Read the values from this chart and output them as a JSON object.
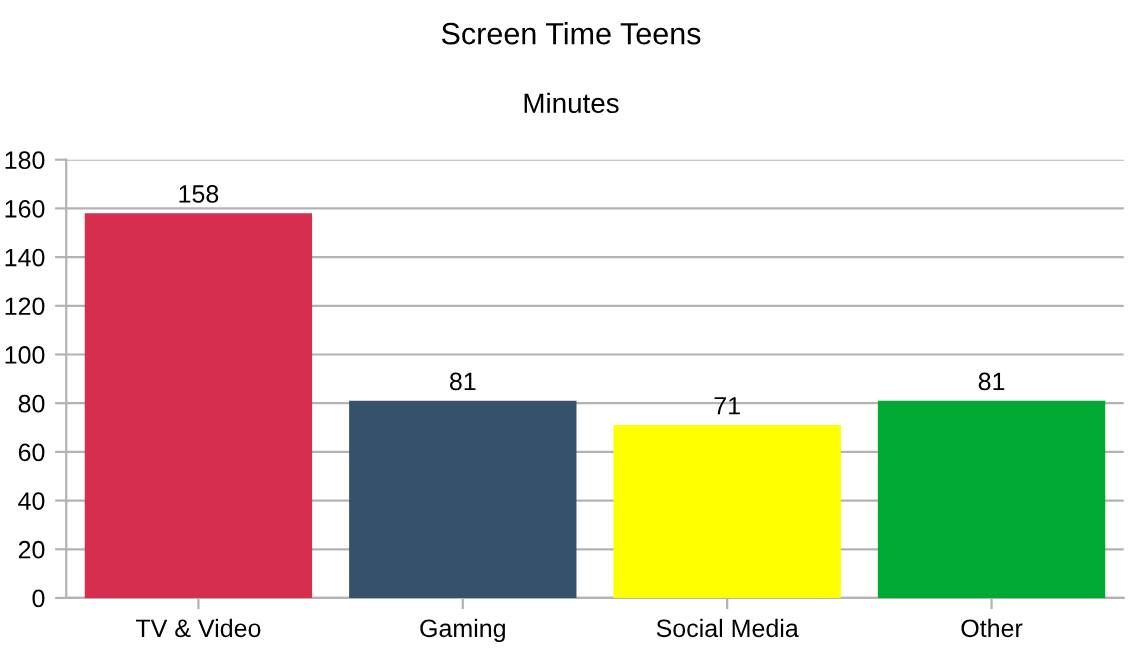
{
  "chart_data": {
    "type": "bar",
    "title": "Screen Time Teens",
    "subtitle": "Minutes",
    "categories": [
      "TV & Video",
      "Gaming",
      "Social Media",
      "Other"
    ],
    "values": [
      158,
      81,
      71,
      81
    ],
    "colors": [
      "#d62e4e",
      "#36526a",
      "#ffff00",
      "#00a933"
    ],
    "ylim": [
      0,
      180
    ],
    "yticks": [
      0,
      20,
      40,
      60,
      80,
      100,
      120,
      140,
      160,
      180
    ],
    "grid": "y",
    "data_labels": true,
    "legend": false
  }
}
